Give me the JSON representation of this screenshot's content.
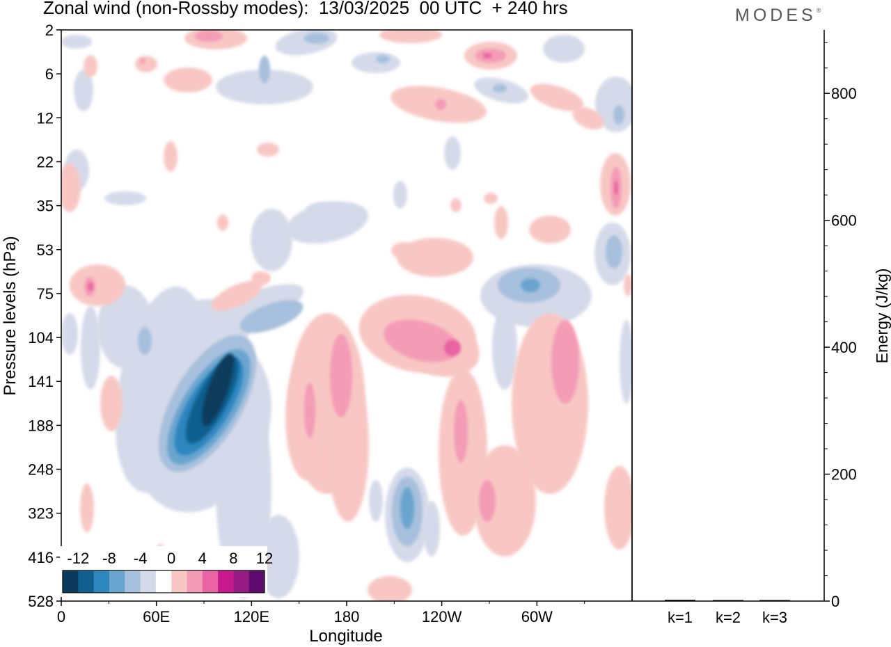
{
  "header": {
    "title": "Zonal wind (non-Rossby modes):  13/03/2025  00 UTC  + 240 hrs",
    "brand": "MODES",
    "brand_mark": "®"
  },
  "chart_data": [
    {
      "type": "heatmap",
      "title": "Zonal wind (non-Rossby modes):  13/03/2025  00 UTC  + 240 hrs",
      "xlabel": "Longitude",
      "ylabel": "Pressure levels (hPa)",
      "x_ticks": [
        "0",
        "60E",
        "120E",
        "180",
        "120W",
        "60W"
      ],
      "x_tick_degrees": [
        0,
        60,
        120,
        180,
        240,
        300
      ],
      "xlim": [
        0,
        360
      ],
      "y_ticks": [
        "2",
        "6",
        "12",
        "22",
        "35",
        "53",
        "75",
        "104",
        "141",
        "188",
        "248",
        "323",
        "416",
        "528"
      ],
      "colorbar": {
        "labels": [
          "-12",
          "-8",
          "-4",
          "0",
          "4",
          "8",
          "12"
        ],
        "levels": [
          -14,
          -12,
          -10,
          -8,
          -6,
          -4,
          -2,
          2,
          4,
          6,
          8,
          10,
          12,
          14
        ],
        "colors": [
          "#0b3a5c",
          "#0f5f8f",
          "#2e86bf",
          "#6aa5cf",
          "#a7c0dd",
          "#d5daea",
          "#ffffff",
          "#f8c7c4",
          "#f49bb6",
          "#e864a2",
          "#c8198c",
          "#951b82",
          "#5f0c6e"
        ]
      },
      "features": [
        {
          "kind": "negative",
          "lon": 100,
          "level": "141",
          "value": -13,
          "note_free": true
        },
        {
          "kind": "positive",
          "lon": 245,
          "level": "104",
          "value": 8
        },
        {
          "kind": "positive",
          "lon": 150,
          "level": "141",
          "value": 6
        },
        {
          "kind": "positive",
          "lon": 257,
          "level": "188",
          "value": 7
        },
        {
          "kind": "negative",
          "lon": 220,
          "level": "323",
          "value": -7
        },
        {
          "kind": "negative",
          "lon": 297,
          "level": "75",
          "value": -6
        },
        {
          "kind": "positive",
          "lon": 18,
          "level": "75",
          "value": 8
        },
        {
          "kind": "positive",
          "lon": 305,
          "level": "141",
          "value": 6
        },
        {
          "kind": "positive",
          "lon": 350,
          "level": "35",
          "value": 8
        },
        {
          "kind": "negative",
          "lon": 348,
          "level": "53",
          "value": -6
        }
      ]
    },
    {
      "type": "bar",
      "categories": [
        "k=1",
        "k=2",
        "k=3"
      ],
      "values": [
        2,
        1,
        1
      ],
      "ylabel": "Energy (J/kg)",
      "ylim": [
        0,
        900
      ],
      "y_ticks": [
        0,
        200,
        400,
        600,
        800
      ]
    }
  ]
}
